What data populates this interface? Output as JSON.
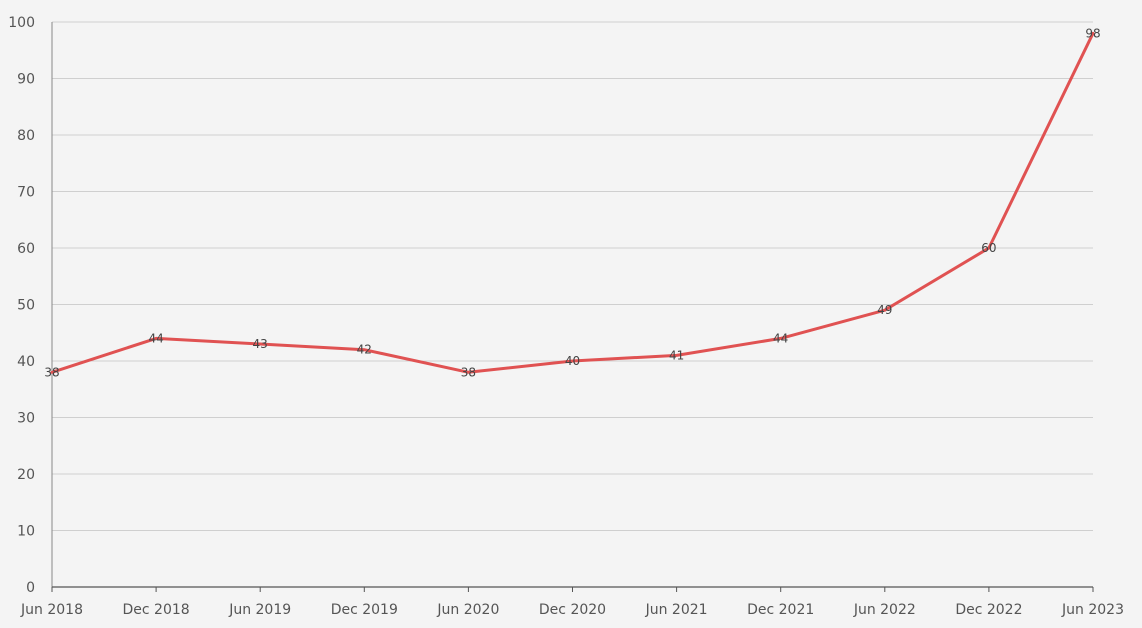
{
  "chart_data": {
    "type": "line",
    "title": "",
    "xlabel": "",
    "ylabel": "",
    "categories": [
      "Jun 2018",
      "Dec 2018",
      "Jun 2019",
      "Dec 2019",
      "Jun 2020",
      "Dec 2020",
      "Jun 2021",
      "Dec 2021",
      "Jun 2022",
      "Dec 2022",
      "Jun 2023"
    ],
    "series": [
      {
        "values": [
          38,
          44,
          43,
          42,
          38,
          40,
          41,
          44,
          49,
          60,
          98
        ],
        "color": "#e05252"
      }
    ],
    "ylim": [
      0,
      100
    ],
    "yticks": [
      0,
      10,
      20,
      30,
      40,
      50,
      60,
      70,
      80,
      90,
      100
    ],
    "grid": "horizontal",
    "data_labels": true,
    "legend": "none"
  }
}
